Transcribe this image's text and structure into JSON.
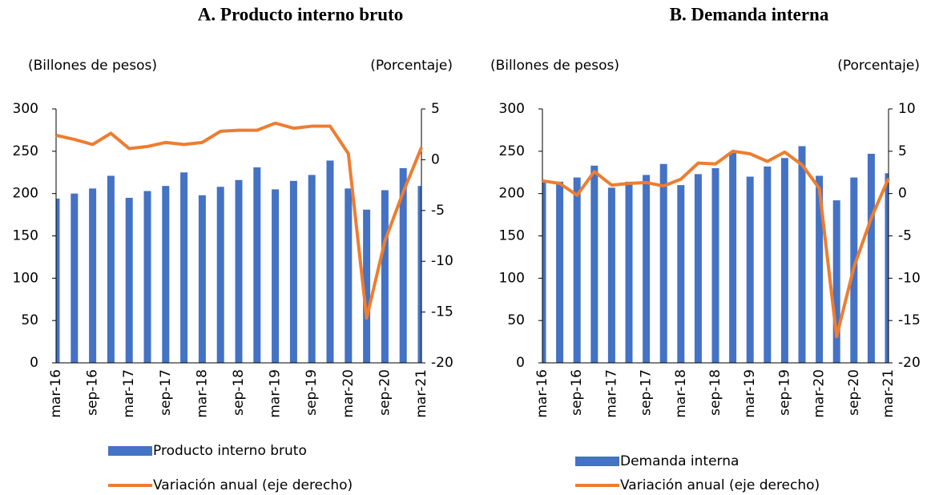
{
  "chart_data": [
    {
      "type": "combo",
      "title": "A.   Producto interno bruto",
      "y_label": "(Billones de pesos)",
      "y2_label": "(Porcentaje)",
      "categories": [
        "mar-16",
        null,
        "sep-16",
        null,
        "mar-17",
        null,
        "sep-17",
        null,
        "mar-18",
        null,
        "sep-18",
        null,
        "mar-19",
        null,
        "sep-19",
        null,
        "mar-20",
        null,
        "sep-20",
        null,
        "mar-21"
      ],
      "series": [
        {
          "name": "Producto interno bruto",
          "type": "bar",
          "color": "#4472c4",
          "values": [
            194,
            200,
            206,
            221,
            195,
            203,
            209,
            225,
            198,
            208,
            216,
            231,
            205,
            215,
            222,
            239,
            206,
            181,
            204,
            230,
            209
          ]
        },
        {
          "name": "Variación anual (eje derecho)",
          "type": "line",
          "axis": "y2",
          "color": "#ed7d31",
          "values": [
            2.4,
            2.0,
            1.5,
            2.6,
            1.1,
            1.3,
            1.7,
            1.5,
            1.7,
            2.8,
            2.9,
            2.9,
            3.6,
            3.1,
            3.3,
            3.3,
            0.6,
            -15.6,
            -8.0,
            -3.2,
            1.2
          ]
        }
      ],
      "ylim": [
        0,
        300
      ],
      "yticks": [
        0,
        50,
        100,
        150,
        200,
        250,
        300
      ],
      "y2lim": [
        -20,
        5
      ],
      "y2ticks": [
        -20,
        -15,
        -10,
        -5,
        0,
        5
      ]
    },
    {
      "type": "combo",
      "title": "B. Demanda interna",
      "y_label": "(Billones de pesos)",
      "y2_label": "(Porcentaje)",
      "categories": [
        "mar-16",
        null,
        "sep-16",
        null,
        "mar-17",
        null,
        "sep-17",
        null,
        "mar-18",
        null,
        "sep-18",
        null,
        "mar-19",
        null,
        "sep-19",
        null,
        "mar-20",
        null,
        "sep-20",
        null,
        "mar-21"
      ],
      "series": [
        {
          "name": "Demanda interna",
          "type": "bar",
          "color": "#4472c4",
          "values": [
            213,
            214,
            219,
            233,
            207,
            214,
            222,
            235,
            210,
            223,
            230,
            248,
            220,
            232,
            242,
            256,
            221,
            192,
            219,
            247,
            224
          ]
        },
        {
          "name": "Variación anual (eje derecho)",
          "type": "line",
          "axis": "y2",
          "color": "#ed7d31",
          "values": [
            1.5,
            1.2,
            -0.2,
            2.6,
            1.0,
            1.2,
            1.3,
            0.9,
            1.7,
            3.6,
            3.5,
            5.0,
            4.7,
            3.8,
            4.9,
            3.4,
            0.6,
            -16.9,
            -8.7,
            -2.9,
            1.8
          ]
        }
      ],
      "ylim": [
        0,
        300
      ],
      "yticks": [
        0,
        50,
        100,
        150,
        200,
        250,
        300
      ],
      "y2lim": [
        -20,
        10
      ],
      "y2ticks": [
        -20,
        -15,
        -10,
        -5,
        0,
        5,
        10
      ]
    }
  ]
}
